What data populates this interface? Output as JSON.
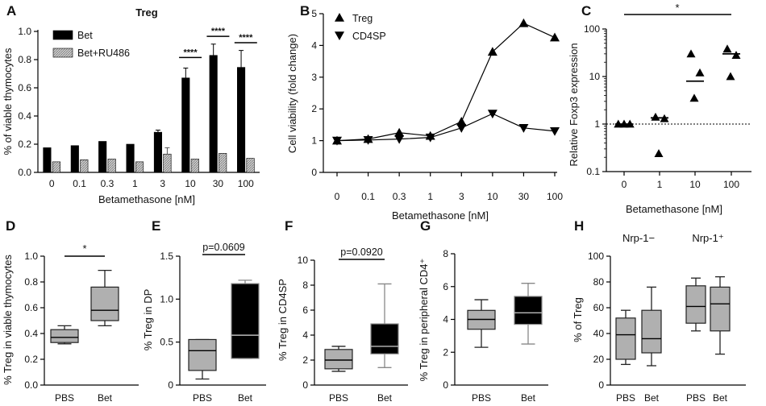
{
  "chart_data": [
    {
      "id": "A",
      "type": "bar",
      "title": "Treg",
      "xlabel": "Betamethasone [nM]",
      "ylabel": "% of viable thymocytes",
      "ylim": [
        0,
        1.0
      ],
      "yticks": [
        "0.0",
        "0.2",
        "0.4",
        "0.6",
        "0.8",
        "1.0"
      ],
      "categories": [
        "0",
        "0.1",
        "0.3",
        "1",
        "3",
        "10",
        "30",
        "100"
      ],
      "series": [
        {
          "name": "Bet",
          "values": [
            0.175,
            0.19,
            0.22,
            0.2,
            0.285,
            0.67,
            0.83,
            0.745
          ],
          "errors": [
            0.005,
            0.005,
            0.005,
            0.005,
            0.015,
            0.07,
            0.08,
            0.12
          ]
        },
        {
          "name": "Bet+RU486",
          "values": [
            0.075,
            0.09,
            0.095,
            0.075,
            0.13,
            0.095,
            0.135,
            0.1
          ],
          "errors": [
            0.005,
            0.005,
            0.005,
            0.005,
            0.045,
            0.005,
            0.005,
            0.005
          ]
        }
      ],
      "significance": [
        {
          "category": "10",
          "label": "****"
        },
        {
          "category": "30",
          "label": "****"
        },
        {
          "category": "100",
          "label": "****"
        }
      ]
    },
    {
      "id": "B",
      "type": "line",
      "xlabel": "Betamethasone [nM]",
      "ylabel": "Cell viability (fold change)",
      "ylim": [
        0,
        5
      ],
      "yticks": [
        "0",
        "1",
        "2",
        "3",
        "4",
        "5"
      ],
      "categories": [
        "0",
        "0.1",
        "0.3",
        "1",
        "3",
        "10",
        "30",
        "100"
      ],
      "series": [
        {
          "name": "Treg",
          "marker": "triangle-up",
          "values": [
            1.0,
            1.05,
            1.25,
            1.15,
            1.6,
            3.8,
            4.7,
            4.25
          ]
        },
        {
          "name": "CD4SP",
          "marker": "triangle-down",
          "values": [
            1.0,
            1.02,
            1.05,
            1.1,
            1.4,
            1.85,
            1.4,
            1.3
          ]
        }
      ]
    },
    {
      "id": "C",
      "type": "scatter",
      "xlabel": "Betamethasone [nM]",
      "ylabel": "Relative Foxp3 expression",
      "yscale": "log",
      "ylim": [
        0.1,
        100
      ],
      "yticks": [
        "0.1",
        "1",
        "10",
        "100"
      ],
      "categories": [
        "0",
        "1",
        "10",
        "100"
      ],
      "points": [
        [
          1.0,
          1.0,
          1.0
        ],
        [
          1.4,
          0.24,
          1.3
        ],
        [
          30,
          3.5,
          12
        ],
        [
          38,
          10,
          28
        ]
      ],
      "medians": [
        1.0,
        1.35,
        8,
        30
      ],
      "reference_line": 1,
      "significance": "*"
    },
    {
      "id": "D",
      "type": "box",
      "ylabel": "% Treg in viable thymocytes",
      "ylim": [
        0,
        1.0
      ],
      "yticks": [
        "0.0",
        "0.2",
        "0.4",
        "0.6",
        "0.8",
        "1.0"
      ],
      "categories": [
        "PBS",
        "Bet"
      ],
      "boxes": [
        {
          "min": 0.32,
          "q1": 0.33,
          "median": 0.37,
          "q3": 0.43,
          "max": 0.46,
          "color": "#b0b0b0"
        },
        {
          "min": 0.46,
          "q1": 0.5,
          "median": 0.58,
          "q3": 0.76,
          "max": 0.89,
          "color": "#b0b0b0"
        }
      ],
      "annotation": "*"
    },
    {
      "id": "E",
      "type": "box",
      "ylabel": "% Treg in DP",
      "ylim": [
        0,
        1.5
      ],
      "yticks": [
        "0",
        "0.5",
        "1.0",
        "1.5"
      ],
      "categories": [
        "PBS",
        "Bet"
      ],
      "boxes": [
        {
          "min": 0.07,
          "q1": 0.17,
          "median": 0.4,
          "q3": 0.53,
          "max": 0.53,
          "color": "#b0b0b0"
        },
        {
          "min": 0.31,
          "q1": 0.31,
          "median": 0.58,
          "q3": 1.18,
          "max": 1.22,
          "color": "#000000"
        }
      ],
      "annotation": "p=0.0609"
    },
    {
      "id": "F",
      "type": "box",
      "ylabel": "% Treg in CD4SP",
      "ylim": [
        0,
        10
      ],
      "yticks": [
        "0",
        "2",
        "4",
        "6",
        "8",
        "10"
      ],
      "categories": [
        "PBS",
        "Bet"
      ],
      "boxes": [
        {
          "min": 1.1,
          "q1": 1.3,
          "median": 2.0,
          "q3": 2.85,
          "max": 3.1,
          "color": "#b0b0b0"
        },
        {
          "min": 1.4,
          "q1": 2.5,
          "median": 3.1,
          "q3": 4.9,
          "max": 8.1,
          "color": "#000000"
        }
      ],
      "annotation": "p=0.0920"
    },
    {
      "id": "G",
      "type": "box",
      "ylabel": "% Treg in peripheral CD4⁺",
      "ylim": [
        0,
        8
      ],
      "yticks": [
        "0",
        "2",
        "4",
        "6",
        "8"
      ],
      "categories": [
        "PBS",
        "Bet"
      ],
      "boxes": [
        {
          "min": 2.3,
          "q1": 3.4,
          "median": 4.0,
          "q3": 4.55,
          "max": 5.2,
          "color": "#b0b0b0"
        },
        {
          "min": 2.5,
          "q1": 3.7,
          "median": 4.4,
          "q3": 5.4,
          "max": 6.2,
          "color": "#000000"
        }
      ]
    },
    {
      "id": "H",
      "type": "box",
      "ylabel": "% of Treg",
      "ylim": [
        0,
        100
      ],
      "yticks": [
        "0",
        "20",
        "40",
        "60",
        "80",
        "100"
      ],
      "categories": [
        "PBS",
        "Bet",
        "PBS",
        "Bet"
      ],
      "groups": [
        "Nrp-1−",
        "Nrp-1⁺"
      ],
      "boxes": [
        {
          "min": 16,
          "q1": 20,
          "median": 39,
          "q3": 52,
          "max": 58,
          "color": "#b0b0b0"
        },
        {
          "min": 15,
          "q1": 25,
          "median": 36,
          "q3": 58,
          "max": 76,
          "color": "#b0b0b0"
        },
        {
          "min": 42,
          "q1": 48,
          "median": 61,
          "q3": 77,
          "max": 83,
          "color": "#b0b0b0"
        },
        {
          "min": 24,
          "q1": 42,
          "median": 63,
          "q3": 76,
          "max": 84,
          "color": "#b0b0b0"
        }
      ]
    }
  ]
}
